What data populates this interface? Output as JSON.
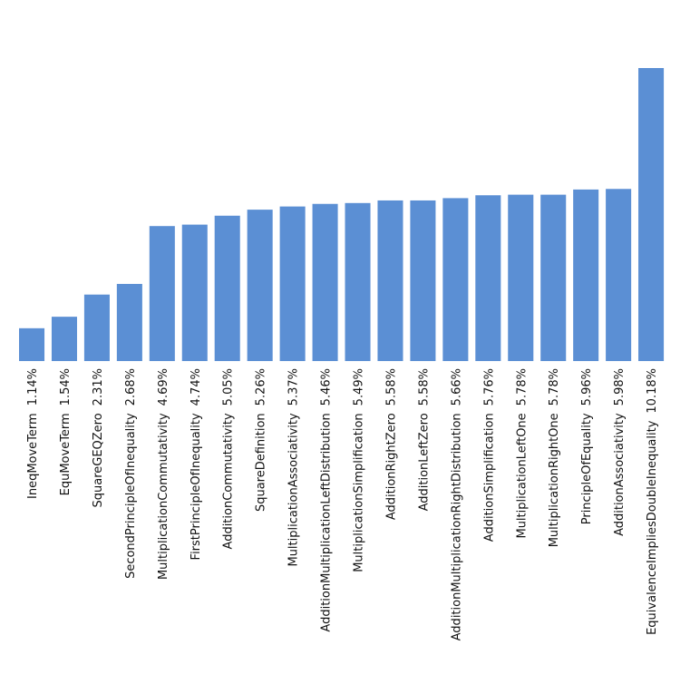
{
  "chart_data": {
    "type": "bar",
    "title": "",
    "xlabel": "",
    "ylabel": "",
    "ylim": [
      0,
      10.18
    ],
    "grid": false,
    "bar_color": "#5B8FD4",
    "categories": [
      "IneqMoveTerm",
      "EquMoveTerm",
      "SquareGEQZero",
      "SecondPrincipleOfInequality",
      "MultiplicationCommutativity",
      "FirstPrincipleOfInequality",
      "AdditionCommutativity",
      "SquareDefinition",
      "MultiplicationAssociativity",
      "AdditionMultiplicationLeftDistribution",
      "MultiplicationSimplification",
      "AdditionRightZero",
      "AdditionLeftZero",
      "AdditionMultiplicationRightDistribution",
      "AdditionSimplification",
      "MultiplicationLeftOne",
      "MultiplicationRightOne",
      "PrincipleOfEquality",
      "AdditionAssociativity",
      "EquivalenceImpliesDoubleInequality"
    ],
    "values": [
      1.14,
      1.54,
      2.31,
      2.68,
      4.69,
      4.74,
      5.05,
      5.26,
      5.37,
      5.46,
      5.49,
      5.58,
      5.58,
      5.66,
      5.76,
      5.78,
      5.78,
      5.96,
      5.98,
      10.18
    ],
    "value_labels": [
      "1.14%",
      "1.54%",
      "2.31%",
      "2.68%",
      "4.69%",
      "4.74%",
      "5.05%",
      "5.26%",
      "5.37%",
      "5.46%",
      "5.49%",
      "5.58%",
      "5.58%",
      "5.66%",
      "5.76%",
      "5.78%",
      "5.78%",
      "5.96%",
      "5.98%",
      "10.18%"
    ]
  }
}
